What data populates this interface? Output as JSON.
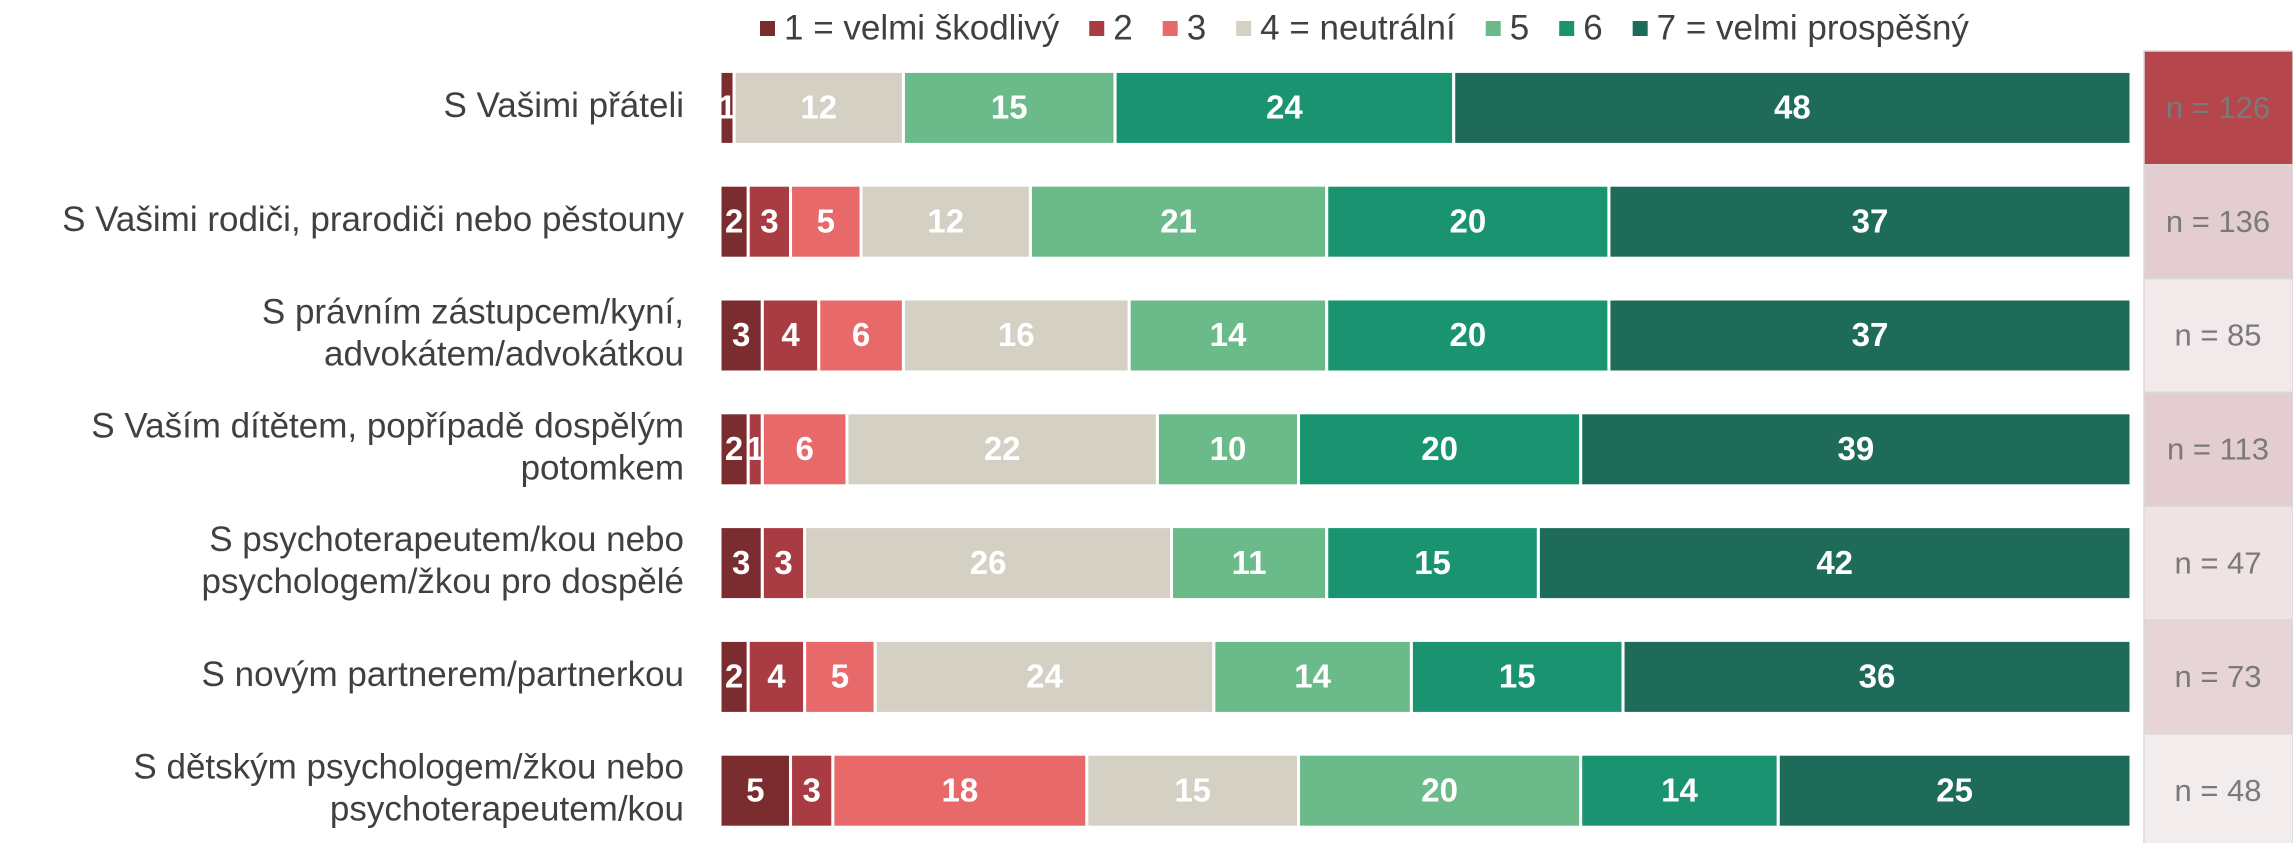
{
  "chart_data": {
    "type": "stacked-bar-horizontal",
    "categories": [
      "S Vašimi přáteli",
      "S Vašimi rodiči, prarodiči nebo pěstouny",
      "S právním zástupcem/kyní,\nadvokátem/advokátkou",
      "S Vaším dítětem, popřípadě dospělým\npotomkem",
      "S psychoterapeutem/kou nebo\npsychologem/žkou pro dospělé",
      "S novým partnerem/partnerkou",
      "S dětským psychologem/žkou nebo\npsychoterapeutem/kou"
    ],
    "xlim": [
      0,
      100
    ],
    "series": [
      {
        "name": "1 = velmi škodlivý",
        "color": "#7b2c2e",
        "values": [
          1,
          2,
          3,
          2,
          3,
          2,
          5
        ]
      },
      {
        "name": "2",
        "color": "#a83c42",
        "values": [
          0,
          3,
          4,
          1,
          3,
          4,
          3
        ]
      },
      {
        "name": "3",
        "color": "#e8696a",
        "values": [
          0,
          5,
          6,
          6,
          0,
          5,
          18
        ]
      },
      {
        "name": "4 = neutrální",
        "color": "#d4d0c4",
        "values": [
          12,
          12,
          16,
          22,
          26,
          24,
          15
        ]
      },
      {
        "name": "5",
        "color": "#6bbb8a",
        "values": [
          15,
          21,
          14,
          10,
          11,
          14,
          20
        ]
      },
      {
        "name": "6",
        "color": "#1a9470",
        "values": [
          24,
          20,
          20,
          20,
          15,
          15,
          14
        ]
      },
      {
        "name": "7 = velmi prospěšný",
        "color": "#1f6b5a",
        "values": [
          48,
          37,
          37,
          39,
          42,
          36,
          25
        ]
      }
    ],
    "sample_sizes": [
      "n = 126",
      "n = 136",
      "n = 85",
      "n = 113",
      "n = 47",
      "n = 73",
      "n = 48"
    ],
    "sample_colors": [
      "#b5464b",
      "#e3cdd0",
      "#f2e9ea",
      "#e3cdd0",
      "#efe3e4",
      "#e6d4d6",
      "#f3ecec"
    ]
  }
}
